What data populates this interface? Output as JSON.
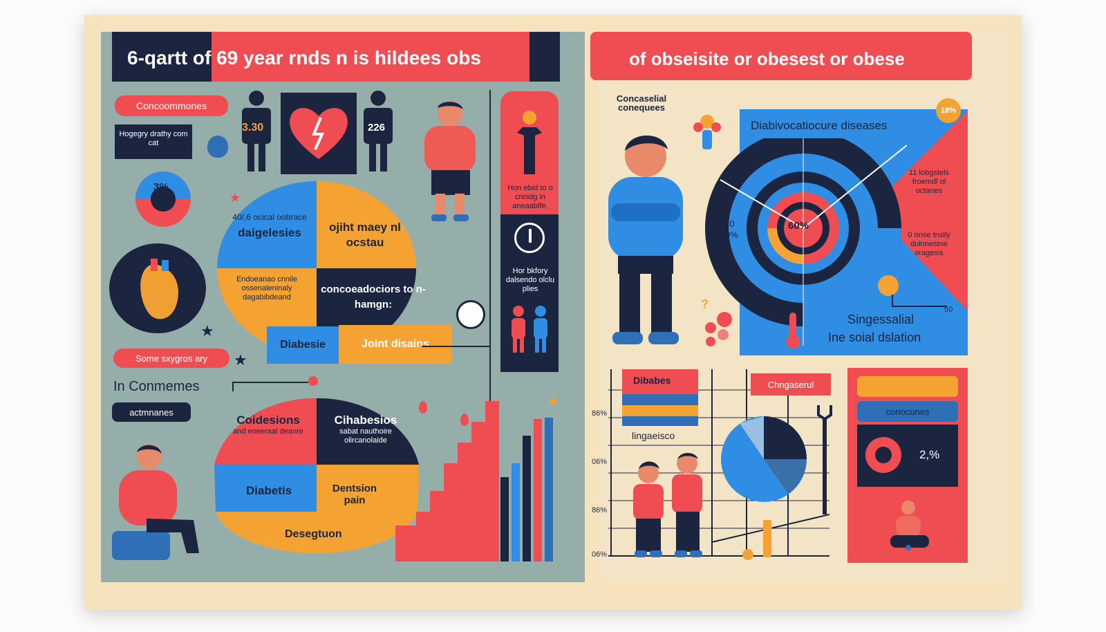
{
  "left": {
    "title": "6-qartt of 69 year rnds n is hildees obs",
    "pill_consequences": "Concoommones",
    "box_text": "Hogegry drathy com cat",
    "donut_pct": "3%",
    "stat_a": "3.30",
    "stat_b": "226",
    "quad1_small": "40/,6 ocical oobrace",
    "quad1_big": "daigelesies",
    "quad2": "ojiht maey nl ocstau",
    "quad3": "Endoeanao cnnile ossenaleninaly dagabibdeand",
    "quad4": "concoeadociors to n-hamgn:",
    "tab_diabetes": "Diabesie",
    "tab_joint": "Joint disains",
    "side_text1": "Hon ebid to o cnnidg in aneaablfe,",
    "side_text2": "Hor bkfory dalsendo olclu plies",
    "pill_some": "Some sxygros ary",
    "in_conmemes": "In Conmemes",
    "tag_actmnanes": "actmnanes",
    "pie2_q1_big": "Coidesions",
    "pie2_q1_small": "and eneeraal deanre",
    "pie2_q2_big": "Cihabesios",
    "pie2_q2_small": "sabat nauthoire olircanolaide",
    "pie2_q3": "Diabetis",
    "pie2_q4": "Dentsion pain",
    "pie2_bottom": "Desegtuon"
  },
  "right": {
    "title": "of obseisite or obesest or obese",
    "conseq": "Concaselial conequees",
    "blue_title": "Diabivocatiocure diseases",
    "badge": "18%",
    "center_pct": "60%",
    "left_pct_top": "10",
    "left_pct": "39%",
    "red_text1": "11 lobgstels froemdl ol octanes",
    "red_text2": "0 onse tnslly dulnnestne oragesis",
    "bottom_50": "50",
    "blue_bottom1": "Singessalial",
    "blue_bottom2": "Ine soial dslation",
    "bar_label1": "Dibabes",
    "bar_label2": "Chngaserul",
    "bar_label3": "lingaeisco",
    "ytick1": "86%",
    "ytick2": "06%",
    "ytick3": "86%",
    "ytick4": "06%",
    "tile_label": "conocunes",
    "tile_pct": "2,%"
  },
  "colors": {
    "red": "#ef4d52",
    "blue": "#2f8ee3",
    "orange": "#f4a332",
    "navy": "#1b2540",
    "teal": "#95aeaa",
    "cream": "#f6e3bd"
  }
}
